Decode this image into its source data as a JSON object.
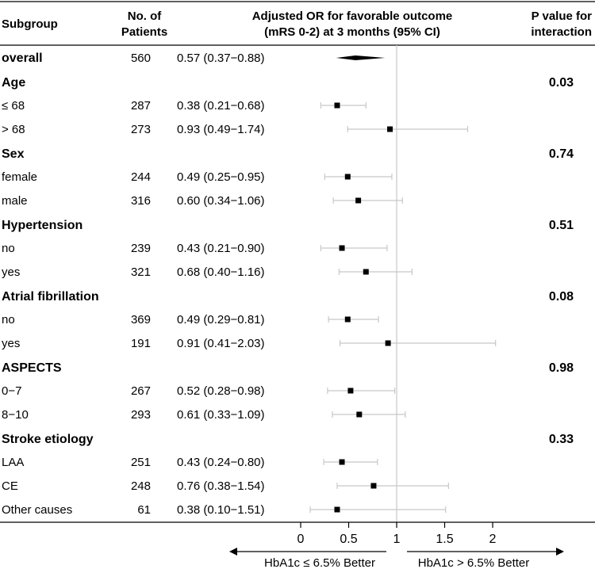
{
  "chart_data": {
    "type": "forest",
    "headers": {
      "subgroup": "Subgroup",
      "patients": [
        "No. of",
        "Patients"
      ],
      "or": [
        "Adjusted OR for favorable outcome",
        "(mRS 0-2) at 3 months (95% CI)"
      ],
      "pvalue": [
        "P value for",
        "interaction"
      ]
    },
    "rows": [
      {
        "label": "overall",
        "kind": "overall",
        "n": "560",
        "ci_text": "0.57 (0.37−0.88)",
        "or": 0.57,
        "lo": 0.37,
        "hi": 0.88
      },
      {
        "label": "Age",
        "kind": "group",
        "p": "0.03"
      },
      {
        "label": "≤ 68",
        "kind": "sub",
        "n": "287",
        "ci_text": "0.38 (0.21−0.68)",
        "or": 0.38,
        "lo": 0.21,
        "hi": 0.68
      },
      {
        "label": "> 68",
        "kind": "sub",
        "n": "273",
        "ci_text": "0.93 (0.49−1.74)",
        "or": 0.93,
        "lo": 0.49,
        "hi": 1.74
      },
      {
        "label": "Sex",
        "kind": "group",
        "p": "0.74"
      },
      {
        "label": "female",
        "kind": "sub",
        "n": "244",
        "ci_text": "0.49 (0.25−0.95)",
        "or": 0.49,
        "lo": 0.25,
        "hi": 0.95
      },
      {
        "label": "male",
        "kind": "sub",
        "n": "316",
        "ci_text": "0.60 (0.34−1.06)",
        "or": 0.6,
        "lo": 0.34,
        "hi": 1.06
      },
      {
        "label": "Hypertension",
        "kind": "group",
        "p": "0.51"
      },
      {
        "label": "no",
        "kind": "sub",
        "n": "239",
        "ci_text": "0.43 (0.21−0.90)",
        "or": 0.43,
        "lo": 0.21,
        "hi": 0.9
      },
      {
        "label": "yes",
        "kind": "sub",
        "n": "321",
        "ci_text": "0.68 (0.40−1.16)",
        "or": 0.68,
        "lo": 0.4,
        "hi": 1.16
      },
      {
        "label": "Atrial fibrillation",
        "kind": "group",
        "p": "0.08"
      },
      {
        "label": "no",
        "kind": "sub",
        "n": "369",
        "ci_text": "0.49 (0.29−0.81)",
        "or": 0.49,
        "lo": 0.29,
        "hi": 0.81
      },
      {
        "label": "yes",
        "kind": "sub",
        "n": "191",
        "ci_text": "0.91 (0.41−2.03)",
        "or": 0.91,
        "lo": 0.41,
        "hi": 2.03
      },
      {
        "label": "ASPECTS",
        "kind": "group",
        "p": "0.98"
      },
      {
        "label": "0−7",
        "kind": "sub",
        "n": "267",
        "ci_text": "0.52 (0.28−0.98)",
        "or": 0.52,
        "lo": 0.28,
        "hi": 0.98
      },
      {
        "label": "8−10",
        "kind": "sub",
        "n": "293",
        "ci_text": "0.61 (0.33−1.09)",
        "or": 0.61,
        "lo": 0.33,
        "hi": 1.09
      },
      {
        "label": "Stroke etiology",
        "kind": "group",
        "p": "0.33"
      },
      {
        "label": "LAA",
        "kind": "sub",
        "n": "251",
        "ci_text": "0.43 (0.24−0.80)",
        "or": 0.43,
        "lo": 0.24,
        "hi": 0.8
      },
      {
        "label": "CE",
        "kind": "sub",
        "n": "248",
        "ci_text": "0.76 (0.38−1.54)",
        "or": 0.76,
        "lo": 0.38,
        "hi": 1.54
      },
      {
        "label": "Other causes",
        "kind": "sub",
        "n": "61",
        "ci_text": "0.38 (0.10−1.51)",
        "or": 0.38,
        "lo": 0.1,
        "hi": 1.51
      }
    ],
    "x_axis": {
      "ticks": [
        0,
        0.5,
        1,
        1.5,
        2
      ],
      "tick_labels": [
        "0",
        "0.5",
        "1",
        "1.5",
        "2"
      ],
      "reference": 1,
      "range": [
        -0.5,
        2.5
      ]
    },
    "direction_labels": {
      "left": "HbA1c ≤ 6.5% Better",
      "right": "HbA1c > 6.5% Better"
    },
    "colors": {
      "ci_line": "#c8c8c8",
      "ref_line": "#c8c8c8",
      "marker": "#000000",
      "rule": "#000000"
    }
  }
}
